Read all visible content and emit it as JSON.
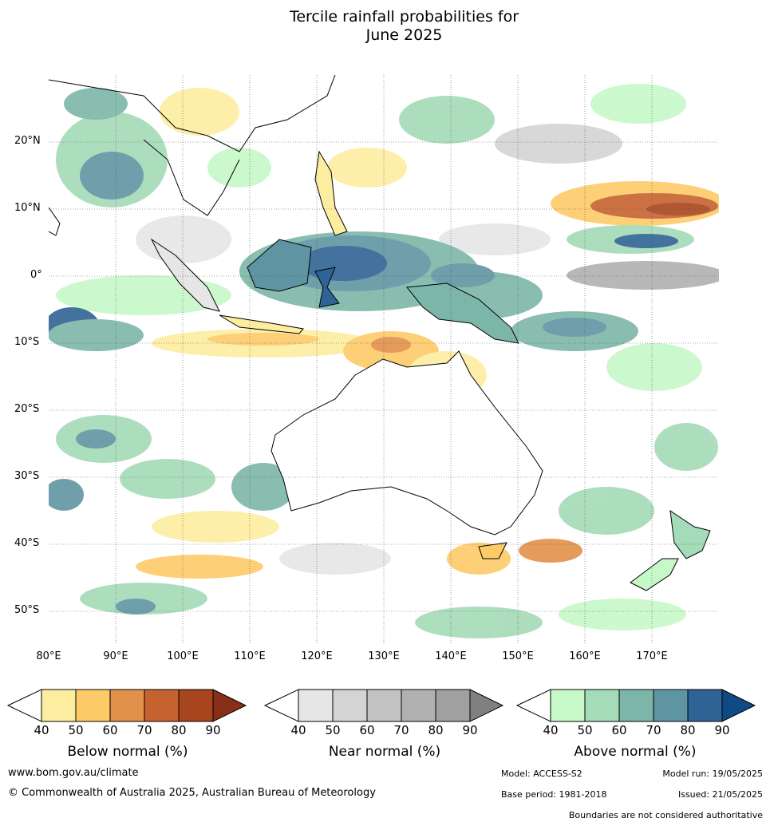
{
  "title": {
    "line1": "Tercile rainfall probabilities for",
    "line2": "June 2025"
  },
  "latitude_labels": [
    "20°N",
    "10°N",
    "0°",
    "10°S",
    "20°S",
    "30°S",
    "40°S",
    "50°S"
  ],
  "longitude_labels": [
    "80°E",
    "90°E",
    "100°E",
    "110°E",
    "120°E",
    "130°E",
    "140°E",
    "150°E",
    "160°E",
    "170°E"
  ],
  "legend": {
    "below": {
      "title": "Below normal (%)",
      "ticks": [
        "40",
        "50",
        "60",
        "70",
        "80",
        "90"
      ],
      "colors": [
        "#ffffff",
        "#fdeda0",
        "#fdca68",
        "#e2914a",
        "#c6622f",
        "#a8451f",
        "#8a2f17"
      ]
    },
    "near": {
      "title": "Near normal (%)",
      "ticks": [
        "40",
        "50",
        "60",
        "70",
        "80",
        "90"
      ],
      "colors": [
        "#ffffff",
        "#e6e6e6",
        "#d4d4d4",
        "#c2c2c2",
        "#b1b1b1",
        "#a0a0a0",
        "#808080"
      ]
    },
    "above": {
      "title": "Above normal (%)",
      "ticks": [
        "40",
        "50",
        "60",
        "70",
        "80",
        "90"
      ],
      "colors": [
        "#ffffff",
        "#c7f8c8",
        "#a4dbb8",
        "#7cb6a8",
        "#5f95a3",
        "#2f6395",
        "#104a85"
      ]
    }
  },
  "footer": {
    "website": "www.bom.gov.au/climate",
    "copyright": "© Commonwealth of Australia 2025, Australian Bureau of Meteorology",
    "model": "Model: ACCESS-S2",
    "model_run": "Model run: 19/05/2025",
    "base_period": "Base period: 1981-2018",
    "issued": "Issued: 21/05/2025",
    "boundaries": "Boundaries are not considered authoritative"
  }
}
